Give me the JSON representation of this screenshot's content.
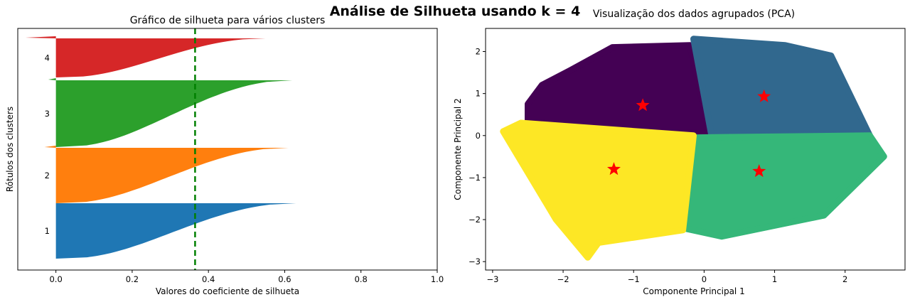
{
  "suptitle": "Análise de Silhueta usando k = 4",
  "chart_data": [
    {
      "type": "bar",
      "title": "Gráfico de silhueta para vários clusters",
      "xlabel": "Valores do coeficiente de silhueta",
      "ylabel": "Rótulos dos clusters",
      "xlim": [
        -0.1,
        1.0
      ],
      "xticks": [
        "0.0",
        "0.2",
        "0.4",
        "0.6",
        "0.8",
        "1.0"
      ],
      "average_silhouette": 0.365,
      "average_line_color": "#008000",
      "clusters": [
        {
          "label": "1",
          "color": "#1f77b4",
          "max": 0.63,
          "min": 0.0
        },
        {
          "label": "2",
          "color": "#ff7f0e",
          "max": 0.61,
          "min": -0.03
        },
        {
          "label": "3",
          "color": "#2ca02c",
          "max": 0.62,
          "min": -0.02
        },
        {
          "label": "4",
          "color": "#d62728",
          "max": 0.55,
          "min": -0.08
        }
      ]
    },
    {
      "type": "scatter",
      "title": "Visualização dos dados agrupados (PCA)",
      "xlabel": "Componente Principal 1",
      "ylabel": "Componente Principal 2",
      "xlim": [
        -3.1,
        2.85
      ],
      "ylim": [
        -3.2,
        2.55
      ],
      "xticks": [
        "−3",
        "−2",
        "−1",
        "0",
        "1",
        "2"
      ],
      "yticks": [
        "−3",
        "−2",
        "−1",
        "0",
        "1",
        "2"
      ],
      "clusters": [
        {
          "name": "0",
          "color": "#440154",
          "region": [
            [
              -2.5,
              0.75
            ],
            [
              -2.3,
              1.2
            ],
            [
              -1.9,
              1.55
            ],
            [
              -1.3,
              2.1
            ],
            [
              -0.2,
              2.15
            ],
            [
              0.08,
              0.05
            ],
            [
              -1.9,
              0.1
            ],
            [
              -2.5,
              0.35
            ]
          ]
        },
        {
          "name": "1",
          "color": "#31688e",
          "region": [
            [
              -0.15,
              2.3
            ],
            [
              1.15,
              2.15
            ],
            [
              1.8,
              1.9
            ],
            [
              2.35,
              0.0
            ],
            [
              0.1,
              0.05
            ]
          ]
        },
        {
          "name": "2",
          "color": "#35b779",
          "region": [
            [
              -0.2,
              -0.05
            ],
            [
              2.35,
              0.0
            ],
            [
              2.55,
              -0.5
            ],
            [
              1.7,
              -1.9
            ],
            [
              0.25,
              -2.4
            ],
            [
              -0.3,
              -2.2
            ]
          ]
        },
        {
          "name": "3",
          "color": "#fde725",
          "region": [
            [
              -2.85,
              0.1
            ],
            [
              -2.6,
              0.3
            ],
            [
              -0.15,
              0.0
            ],
            [
              -0.3,
              -2.25
            ],
            [
              -1.5,
              -2.55
            ],
            [
              -1.65,
              -2.9
            ],
            [
              -2.1,
              -2.0
            ]
          ]
        }
      ],
      "centroids": [
        {
          "x": -0.87,
          "y": 0.72
        },
        {
          "x": 0.85,
          "y": 0.93
        },
        {
          "x": 0.78,
          "y": -0.85
        },
        {
          "x": -1.28,
          "y": -0.8
        }
      ],
      "centroid_color": "#ff0000",
      "centroid_marker": "star"
    }
  ]
}
